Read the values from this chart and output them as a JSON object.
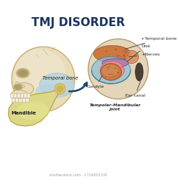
{
  "title": "TMJ DISORDER",
  "title_color": "#1a3560",
  "title_fontsize": 12,
  "background_color": "#ffffff",
  "skull_color": "#e8ddb8",
  "skull_outline": "#c8aa70",
  "skull_shadow": "#d4c898",
  "temporal_bone_color": "#b8d4e0",
  "temporal_bone_outline": "#90b8cc",
  "mandible_color": "#ddd888",
  "mandible_outline": "#b8a840",
  "condyle_label": "Condyle",
  "temporal_label": "Temporal bone",
  "mandible_label": "Mandible",
  "tmj_label": "Tempolar-Mandibular\njoint",
  "ear_canal_label": "Ear canal",
  "disk_label": "Disk",
  "nerves_label": "+Nerves",
  "temporal_bone_label2": "+Temporal bone",
  "arrow_color": "#1a4870",
  "circle_bg": "#e4d4b8",
  "joint_blue": "#90c0d8",
  "joint_blue_outline": "#4080a0",
  "joint_pink": "#e89090",
  "joint_purple": "#b080b0",
  "bone_orange": "#cc7840",
  "bone_orange2": "#d89060",
  "ear_dark": "#484038",
  "teeth_color": "#f4f0e0",
  "label_color": "#222222",
  "label_fontsize": 4.5,
  "shutterstock_text": "shutterstock.com · 1716625330"
}
